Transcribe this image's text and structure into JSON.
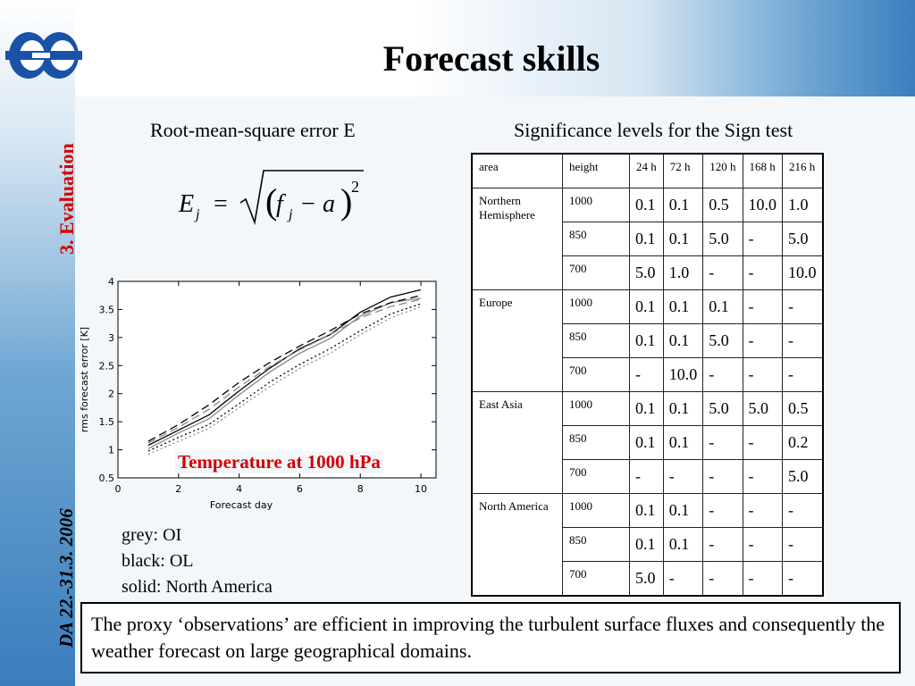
{
  "slide": {
    "title": "Forecast skills",
    "side_section": "3. Evaluation",
    "side_date": "DA 22.-31.3. 2006",
    "rmse_label": "Root-mean-square error E",
    "sign_label": "Significance levels for the Sign test",
    "chart_annotation": "Temperature at 1000 hPa",
    "legend_lines": [
      "grey: OI",
      "black: OL",
      "solid: North America"
    ],
    "conclusion": "The proxy ‘observations’ are efficient in improving the turbulent surface fluxes and consequently the weather forecast on large geographical domains.",
    "formula": {
      "lhs": "E",
      "sub": "j",
      "eq": "=",
      "f": "f",
      "minus": "−",
      "a": "a",
      "exp": "2"
    },
    "colors": {
      "accent_red": "#d40000",
      "logo_blue": "#1a52a8"
    }
  },
  "table": {
    "headers": [
      "area",
      "height",
      "24 h",
      "72 h",
      "120 h",
      "168 h",
      "216 h"
    ],
    "groups": [
      {
        "area": "Northern Hemisphere",
        "rows": [
          {
            "height": "1000",
            "values": [
              "0.1",
              "0.1",
              "0.5",
              "10.0",
              "1.0"
            ]
          },
          {
            "height": "850",
            "values": [
              "0.1",
              "0.1",
              "5.0",
              "-",
              "5.0"
            ]
          },
          {
            "height": "700",
            "values": [
              "5.0",
              "1.0",
              "-",
              "-",
              "10.0"
            ]
          }
        ]
      },
      {
        "area": "Europe",
        "rows": [
          {
            "height": "1000",
            "values": [
              "0.1",
              "0.1",
              "0.1",
              "-",
              "-"
            ]
          },
          {
            "height": "850",
            "values": [
              "0.1",
              "0.1",
              "5.0",
              "-",
              "-"
            ]
          },
          {
            "height": "700",
            "values": [
              "-",
              "10.0",
              "-",
              "-",
              "-"
            ]
          }
        ]
      },
      {
        "area": "East Asia",
        "rows": [
          {
            "height": "1000",
            "values": [
              "0.1",
              "0.1",
              "5.0",
              "5.0",
              "0.5"
            ]
          },
          {
            "height": "850",
            "values": [
              "0.1",
              "0.1",
              "-",
              "-",
              "0.2"
            ]
          },
          {
            "height": "700",
            "values": [
              "-",
              "-",
              "-",
              "-",
              "5.0"
            ]
          }
        ]
      },
      {
        "area": "North America",
        "rows": [
          {
            "height": "1000",
            "values": [
              "0.1",
              "0.1",
              "-",
              "-",
              "-"
            ]
          },
          {
            "height": "850",
            "values": [
              "0.1",
              "0.1",
              "-",
              "-",
              "-"
            ]
          },
          {
            "height": "700",
            "values": [
              "5.0",
              "-",
              "-",
              "-",
              "-"
            ]
          }
        ]
      }
    ]
  },
  "chart_data": {
    "type": "line",
    "xlabel": "Forecast day",
    "ylabel": "rms forecast error [K]",
    "xlim": [
      0,
      10.5
    ],
    "ylim": [
      0.5,
      4.0
    ],
    "xticks": [
      0,
      2,
      4,
      6,
      8,
      10
    ],
    "yticks": [
      0.5,
      1.0,
      1.5,
      2.0,
      2.5,
      3.0,
      3.5,
      4.0
    ],
    "grid": false,
    "series": [
      {
        "style": "solid",
        "color": "#000000",
        "x": [
          1,
          2,
          3,
          4,
          5,
          6,
          7,
          8,
          9,
          10
        ],
        "y": [
          1.08,
          1.35,
          1.62,
          2.05,
          2.45,
          2.8,
          3.05,
          3.45,
          3.72,
          3.85
        ]
      },
      {
        "style": "solid",
        "color": "#888888",
        "x": [
          1,
          2,
          3,
          4,
          5,
          6,
          7,
          8,
          9,
          10
        ],
        "y": [
          1.02,
          1.3,
          1.55,
          1.98,
          2.38,
          2.72,
          2.98,
          3.38,
          3.62,
          3.7
        ]
      },
      {
        "style": "dashed",
        "color": "#000000",
        "x": [
          1,
          2,
          3,
          4,
          5,
          6,
          7,
          8,
          9,
          10
        ],
        "y": [
          1.15,
          1.45,
          1.8,
          2.2,
          2.55,
          2.85,
          3.12,
          3.42,
          3.62,
          3.75
        ]
      },
      {
        "style": "dashed",
        "color": "#888888",
        "x": [
          1,
          2,
          3,
          4,
          5,
          6,
          7,
          8,
          9,
          10
        ],
        "y": [
          1.12,
          1.4,
          1.72,
          2.12,
          2.48,
          2.78,
          3.05,
          3.35,
          3.55,
          3.68
        ]
      },
      {
        "style": "dotted",
        "color": "#000000",
        "x": [
          1,
          2,
          3,
          4,
          5,
          6,
          7,
          8,
          9,
          10
        ],
        "y": [
          0.98,
          1.22,
          1.45,
          1.82,
          2.2,
          2.52,
          2.8,
          3.12,
          3.42,
          3.6
        ]
      },
      {
        "style": "dotted",
        "color": "#888888",
        "x": [
          1,
          2,
          3,
          4,
          5,
          6,
          7,
          8,
          9,
          10
        ],
        "y": [
          0.92,
          1.15,
          1.38,
          1.75,
          2.12,
          2.45,
          2.72,
          3.05,
          3.35,
          3.55
        ]
      }
    ]
  }
}
